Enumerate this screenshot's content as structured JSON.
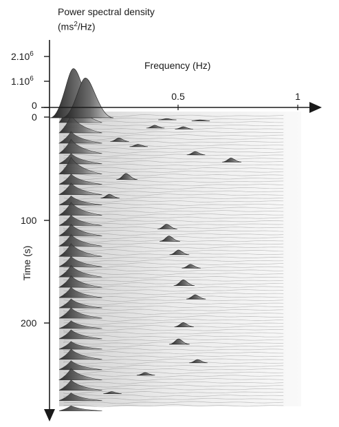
{
  "chart_data": {
    "type": "area",
    "subtype": "3d-waterfall-spectrogram",
    "z_axis": {
      "label_line1": "Power spectral density",
      "label_unit_prefix": "(ms",
      "label_unit_sup": "2",
      "label_unit_suffix": "/Hz)",
      "ticks": [
        {
          "value": 2000000,
          "mantissa": "2.10",
          "exp": "6"
        },
        {
          "value": 1000000,
          "mantissa": "1.10",
          "exp": "6"
        },
        {
          "value": 0,
          "mantissa": "0",
          "exp": ""
        }
      ]
    },
    "x_axis": {
      "label": "Frequency (Hz)",
      "range": [
        0,
        1
      ],
      "ticks": [
        {
          "value": 0.5,
          "label": "0.5"
        },
        {
          "value": 1,
          "label": "1"
        }
      ]
    },
    "y_axis": {
      "label": "Time (s)",
      "range": [
        0,
        285
      ],
      "ticks": [
        {
          "value": 0,
          "label": "0"
        },
        {
          "value": 100,
          "label": "100"
        },
        {
          "value": 200,
          "label": "200"
        }
      ]
    },
    "spectral_peaks": [
      {
        "t": 2,
        "f": 0.06,
        "p": 2100000
      },
      {
        "t": 2,
        "f": 0.11,
        "p": 1700000
      },
      {
        "t": 4,
        "f": 0.45,
        "p": 50000
      },
      {
        "t": 5,
        "f": 0.59,
        "p": 40000
      },
      {
        "t": 12,
        "f": 0.4,
        "p": 120000
      },
      {
        "t": 13,
        "f": 0.52,
        "p": 100000
      },
      {
        "t": 25,
        "f": 0.25,
        "p": 150000
      },
      {
        "t": 30,
        "f": 0.33,
        "p": 100000
      },
      {
        "t": 38,
        "f": 0.57,
        "p": 140000
      },
      {
        "t": 45,
        "f": 0.72,
        "p": 170000
      },
      {
        "t": 62,
        "f": 0.28,
        "p": 260000
      },
      {
        "t": 80,
        "f": 0.21,
        "p": 160000
      },
      {
        "t": 110,
        "f": 0.45,
        "p": 200000
      },
      {
        "t": 122,
        "f": 0.46,
        "p": 230000
      },
      {
        "t": 135,
        "f": 0.5,
        "p": 200000
      },
      {
        "t": 148,
        "f": 0.55,
        "p": 160000
      },
      {
        "t": 165,
        "f": 0.52,
        "p": 250000
      },
      {
        "t": 178,
        "f": 0.57,
        "p": 180000
      },
      {
        "t": 205,
        "f": 0.52,
        "p": 180000
      },
      {
        "t": 222,
        "f": 0.5,
        "p": 230000
      },
      {
        "t": 240,
        "f": 0.58,
        "p": 140000
      },
      {
        "t": 252,
        "f": 0.36,
        "p": 110000
      },
      {
        "t": 270,
        "f": 0.22,
        "p": 90000
      }
    ],
    "lf_envelope": [
      {
        "t": 0,
        "p": 2100000
      },
      {
        "t": 10,
        "p": 1400000
      },
      {
        "t": 20,
        "p": 900000
      },
      {
        "t": 30,
        "p": 1100000
      },
      {
        "t": 40,
        "p": 800000
      },
      {
        "t": 50,
        "p": 1300000
      },
      {
        "t": 60,
        "p": 800000
      },
      {
        "t": 70,
        "p": 900000
      },
      {
        "t": 80,
        "p": 700000
      },
      {
        "t": 90,
        "p": 1000000
      },
      {
        "t": 100,
        "p": 800000
      },
      {
        "t": 110,
        "p": 900000
      },
      {
        "t": 120,
        "p": 900000
      },
      {
        "t": 130,
        "p": 1000000
      },
      {
        "t": 140,
        "p": 800000
      },
      {
        "t": 150,
        "p": 900000
      },
      {
        "t": 160,
        "p": 900000
      },
      {
        "t": 170,
        "p": 800000
      },
      {
        "t": 180,
        "p": 700000
      },
      {
        "t": 190,
        "p": 800000
      },
      {
        "t": 200,
        "p": 600000
      },
      {
        "t": 210,
        "p": 700000
      },
      {
        "t": 220,
        "p": 600000
      },
      {
        "t": 230,
        "p": 800000
      },
      {
        "t": 240,
        "p": 700000
      },
      {
        "t": 250,
        "p": 900000
      },
      {
        "t": 260,
        "p": 800000
      },
      {
        "t": 270,
        "p": 600000
      },
      {
        "t": 280,
        "p": 400000
      }
    ]
  },
  "colors": {
    "axis": "#1a1a1a",
    "surface_dark": "#2a2a2a",
    "surface_mid": "#7a7a7a",
    "surface_light": "#e6e6e6",
    "background": "#ffffff"
  }
}
